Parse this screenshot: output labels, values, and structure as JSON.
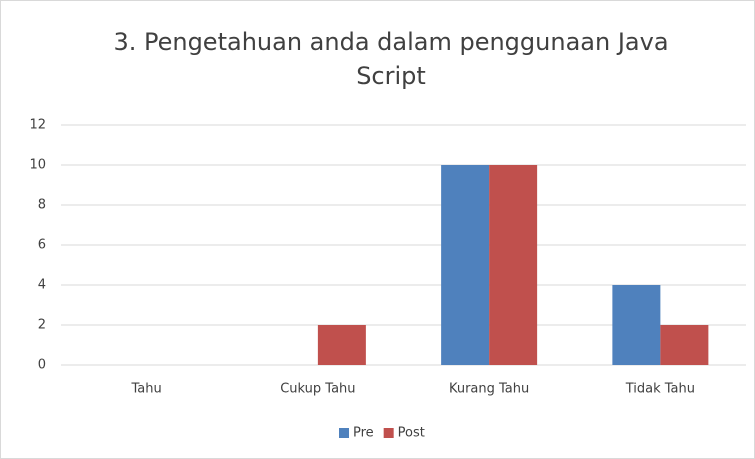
{
  "chart_data": {
    "type": "bar",
    "title": "3. Pengetahuan anda dalam penggunaan Java Script",
    "categories": [
      "Tahu",
      "Cukup Tahu",
      "Kurang Tahu",
      "Tidak Tahu"
    ],
    "series": [
      {
        "name": "Pre",
        "color": "#4f81bd",
        "values": [
          0,
          0,
          10,
          4
        ]
      },
      {
        "name": "Post",
        "color": "#c0504d",
        "values": [
          0,
          2,
          10,
          2
        ]
      }
    ],
    "ylim": [
      0,
      12
    ],
    "yticks": [
      0,
      2,
      4,
      6,
      8,
      10,
      12
    ],
    "grid": true,
    "legend": "bottom"
  }
}
